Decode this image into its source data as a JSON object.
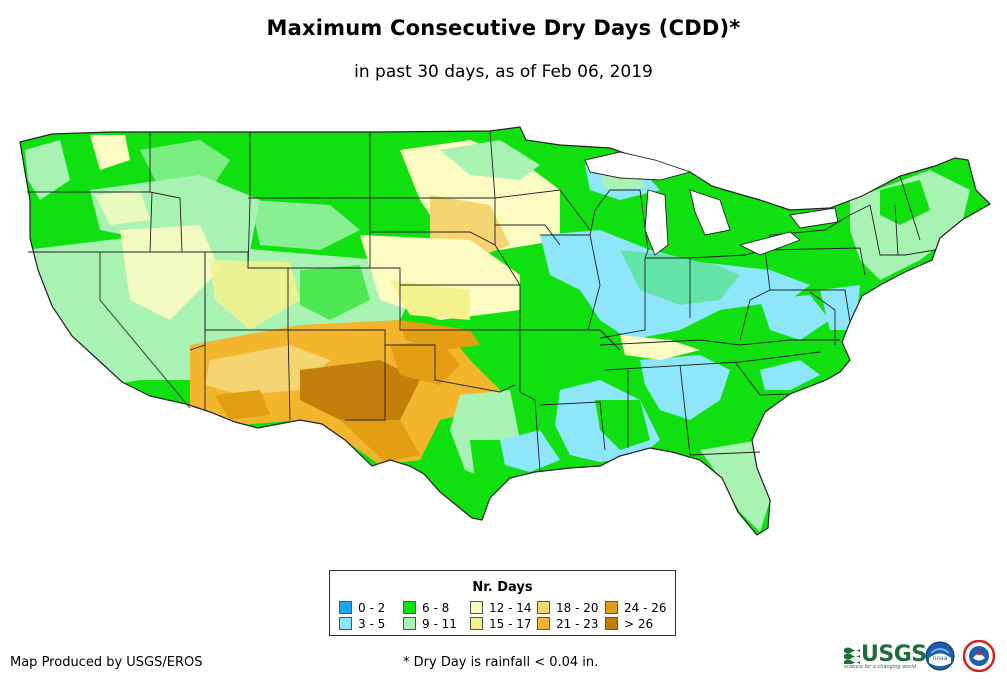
{
  "title": "Maximum Consecutive Dry Days (CDD)*",
  "subtitle": "in past 30 days, as of Feb 06, 2019",
  "legend": {
    "title": "Nr. Days",
    "items": [
      {
        "label": "0 - 2",
        "color": "#1ea5f2"
      },
      {
        "label": "3 - 5",
        "color": "#8ee6fb"
      },
      {
        "label": "6 - 8",
        "color": "#10e010"
      },
      {
        "label": "9 - 11",
        "color": "#a8f2b4"
      },
      {
        "label": "12 - 14",
        "color": "#fbfbc2"
      },
      {
        "label": "15 - 17",
        "color": "#f4f28c"
      },
      {
        "label": "18 - 20",
        "color": "#f4d572"
      },
      {
        "label": "21 - 23",
        "color": "#f3b52c"
      },
      {
        "label": "24 - 26",
        "color": "#e29d10"
      },
      {
        "label": "> 26",
        "color": "#c47e0c"
      }
    ]
  },
  "footer": {
    "producer": "Map Produced by USGS/EROS",
    "footnote": "* Dry Day is rainfall < 0.04 in."
  },
  "logos": {
    "usgs": "USGS",
    "usgs_tagline": "science for a changing world",
    "noaa": "noaa"
  },
  "colors": {
    "border": "#222222",
    "usgs_green": "#1d6e3b",
    "noaa_blue": "#1f5fae"
  }
}
